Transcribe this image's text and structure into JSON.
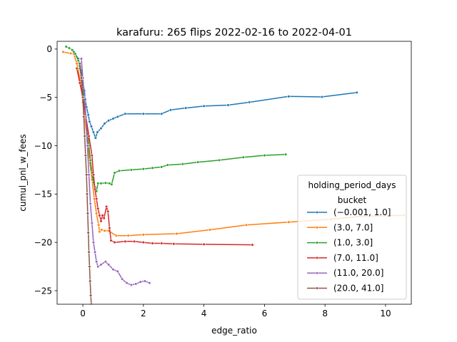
{
  "chart_data": {
    "type": "line",
    "title": "karafuru: 265 flips 2022-02-16 to 2022-04-01",
    "xlabel": "edge_ratio",
    "ylabel": "cumul_pnl_w_fees",
    "xlim": [
      -0.85,
      10.85
    ],
    "ylim": [
      -26.4,
      0.8
    ],
    "xticks": [
      0,
      2,
      4,
      6,
      8,
      10
    ],
    "yticks": [
      0,
      -5,
      -10,
      -15,
      -20,
      -25
    ],
    "xtick_labels": [
      "0",
      "2",
      "4",
      "6",
      "8",
      "10"
    ],
    "ytick_labels": [
      "0",
      "−5",
      "−10",
      "−15",
      "−20",
      "−25"
    ],
    "grid": false,
    "legend": {
      "title_line1": "holding_period_days",
      "title_line2": "bucket",
      "placement": "lower-right"
    },
    "series": [
      {
        "name": "(−0.001, 1.0]",
        "color": "#1f77b4",
        "points": [
          [
            -0.3,
            -0.3
          ],
          [
            -0.15,
            -1.0
          ],
          [
            -0.05,
            -2.2
          ],
          [
            0.0,
            -3.5
          ],
          [
            0.05,
            -4.3
          ],
          [
            0.08,
            -5.2
          ],
          [
            0.12,
            -6.0
          ],
          [
            0.18,
            -6.8
          ],
          [
            0.22,
            -7.5
          ],
          [
            0.28,
            -8.0
          ],
          [
            0.35,
            -8.6
          ],
          [
            0.42,
            -9.2
          ],
          [
            0.48,
            -8.6
          ],
          [
            0.6,
            -8.2
          ],
          [
            0.72,
            -7.7
          ],
          [
            0.85,
            -7.4
          ],
          [
            1.0,
            -7.2
          ],
          [
            1.15,
            -7.0
          ],
          [
            1.4,
            -6.7
          ],
          [
            2.0,
            -6.7
          ],
          [
            2.6,
            -6.7
          ],
          [
            2.9,
            -6.3
          ],
          [
            3.4,
            -6.1
          ],
          [
            4.0,
            -5.9
          ],
          [
            4.8,
            -5.8
          ],
          [
            5.5,
            -5.5
          ],
          [
            6.8,
            -4.9
          ],
          [
            7.9,
            -4.95
          ],
          [
            9.05,
            -4.5
          ]
        ]
      },
      {
        "name": "(3.0, 7.0]",
        "color": "#ff7f0e",
        "points": [
          [
            -0.65,
            -0.3
          ],
          [
            -0.4,
            -0.45
          ],
          [
            -0.3,
            -0.5
          ],
          [
            -0.2,
            -1.5
          ],
          [
            -0.05,
            -3.8
          ],
          [
            0.0,
            -5.5
          ],
          [
            0.08,
            -7.5
          ],
          [
            0.15,
            -9.5
          ],
          [
            0.22,
            -11.5
          ],
          [
            0.3,
            -13.5
          ],
          [
            0.38,
            -15.5
          ],
          [
            0.45,
            -17.0
          ],
          [
            0.52,
            -18.2
          ],
          [
            0.55,
            -18.9
          ],
          [
            0.62,
            -18.7
          ],
          [
            0.72,
            -18.8
          ],
          [
            0.85,
            -18.8
          ],
          [
            1.1,
            -19.3
          ],
          [
            1.5,
            -19.3
          ],
          [
            2.0,
            -19.2
          ],
          [
            3.1,
            -19.1
          ],
          [
            4.2,
            -18.7
          ],
          [
            5.4,
            -18.2
          ],
          [
            6.8,
            -17.9
          ],
          [
            8.2,
            -17.6
          ],
          [
            9.2,
            -17.3
          ],
          [
            10.6,
            -17.2
          ]
        ]
      },
      {
        "name": "(1.0, 3.0]",
        "color": "#2ca02c",
        "points": [
          [
            -0.55,
            0.25
          ],
          [
            -0.45,
            0.1
          ],
          [
            -0.35,
            -0.1
          ],
          [
            -0.25,
            -0.5
          ],
          [
            -0.15,
            -1.2
          ],
          [
            -0.1,
            -2.0
          ],
          [
            -0.05,
            -2.8
          ],
          [
            0.0,
            -4.0
          ],
          [
            0.05,
            -5.5
          ],
          [
            0.1,
            -7.0
          ],
          [
            0.15,
            -8.5
          ],
          [
            0.2,
            -10.0
          ],
          [
            0.25,
            -11.5
          ],
          [
            0.3,
            -12.8
          ],
          [
            0.35,
            -13.8
          ],
          [
            0.4,
            -14.3
          ],
          [
            0.45,
            -14.7
          ],
          [
            0.5,
            -13.9
          ],
          [
            0.6,
            -13.9
          ],
          [
            0.75,
            -13.85
          ],
          [
            0.88,
            -13.9
          ],
          [
            0.95,
            -14.0
          ],
          [
            1.05,
            -12.8
          ],
          [
            1.2,
            -12.6
          ],
          [
            1.6,
            -12.5
          ],
          [
            2.0,
            -12.4
          ],
          [
            2.3,
            -12.3
          ],
          [
            2.6,
            -12.2
          ],
          [
            2.8,
            -12.0
          ],
          [
            3.3,
            -11.9
          ],
          [
            3.8,
            -11.7
          ],
          [
            4.5,
            -11.5
          ],
          [
            5.3,
            -11.2
          ],
          [
            6.0,
            -11.0
          ],
          [
            6.7,
            -10.9
          ]
        ]
      },
      {
        "name": "(7.0, 11.0]",
        "color": "#d62728",
        "points": [
          [
            -0.2,
            -2.0
          ],
          [
            -0.1,
            -3.5
          ],
          [
            0.0,
            -5.0
          ],
          [
            0.1,
            -7.0
          ],
          [
            0.2,
            -9.0
          ],
          [
            0.3,
            -11.0
          ],
          [
            0.35,
            -13.0
          ],
          [
            0.4,
            -14.5
          ],
          [
            0.45,
            -15.5
          ],
          [
            0.5,
            -16.5
          ],
          [
            0.55,
            -17.2
          ],
          [
            0.6,
            -17.8
          ],
          [
            0.65,
            -17.2
          ],
          [
            0.7,
            -17.5
          ],
          [
            0.78,
            -16.3
          ],
          [
            0.83,
            -16.8
          ],
          [
            0.88,
            -18.5
          ],
          [
            0.93,
            -19.8
          ],
          [
            1.05,
            -20.0
          ],
          [
            1.4,
            -19.9
          ],
          [
            1.7,
            -19.9
          ],
          [
            2.0,
            -20.0
          ],
          [
            2.3,
            -20.1
          ],
          [
            2.6,
            -20.1
          ],
          [
            3.0,
            -20.15
          ],
          [
            4.0,
            -20.2
          ],
          [
            5.6,
            -20.25
          ]
        ]
      },
      {
        "name": "(11.0, 20.0]",
        "color": "#9467bd",
        "points": [
          [
            -0.05,
            -1.0
          ],
          [
            0.0,
            -3.0
          ],
          [
            0.05,
            -5.0
          ],
          [
            0.1,
            -7.0
          ],
          [
            0.15,
            -10.0
          ],
          [
            0.2,
            -13.0
          ],
          [
            0.25,
            -16.0
          ],
          [
            0.3,
            -18.0
          ],
          [
            0.35,
            -20.0
          ],
          [
            0.4,
            -21.0
          ],
          [
            0.45,
            -22.0
          ],
          [
            0.5,
            -22.5
          ],
          [
            0.6,
            -22.3
          ],
          [
            0.75,
            -22.0
          ],
          [
            0.85,
            -22.3
          ],
          [
            1.0,
            -22.8
          ],
          [
            1.15,
            -23.0
          ],
          [
            1.3,
            -23.8
          ],
          [
            1.45,
            -24.2
          ],
          [
            1.6,
            -24.4
          ],
          [
            1.75,
            -24.3
          ],
          [
            1.9,
            -24.1
          ],
          [
            2.05,
            -24.0
          ],
          [
            2.2,
            -24.2
          ]
        ]
      },
      {
        "name": "(20.0, 41.0]",
        "color": "#8c564b",
        "points": [
          [
            -0.1,
            -1.5
          ],
          [
            -0.05,
            -3.0
          ],
          [
            0.0,
            -5.0
          ],
          [
            0.03,
            -7.0
          ],
          [
            0.06,
            -9.0
          ],
          [
            0.09,
            -11.0
          ],
          [
            0.12,
            -13.0
          ],
          [
            0.14,
            -15.0
          ],
          [
            0.16,
            -17.0
          ],
          [
            0.18,
            -19.0
          ],
          [
            0.2,
            -21.0
          ],
          [
            0.22,
            -22.5
          ],
          [
            0.24,
            -24.0
          ],
          [
            0.26,
            -25.5
          ],
          [
            0.28,
            -26.4
          ]
        ]
      }
    ]
  }
}
